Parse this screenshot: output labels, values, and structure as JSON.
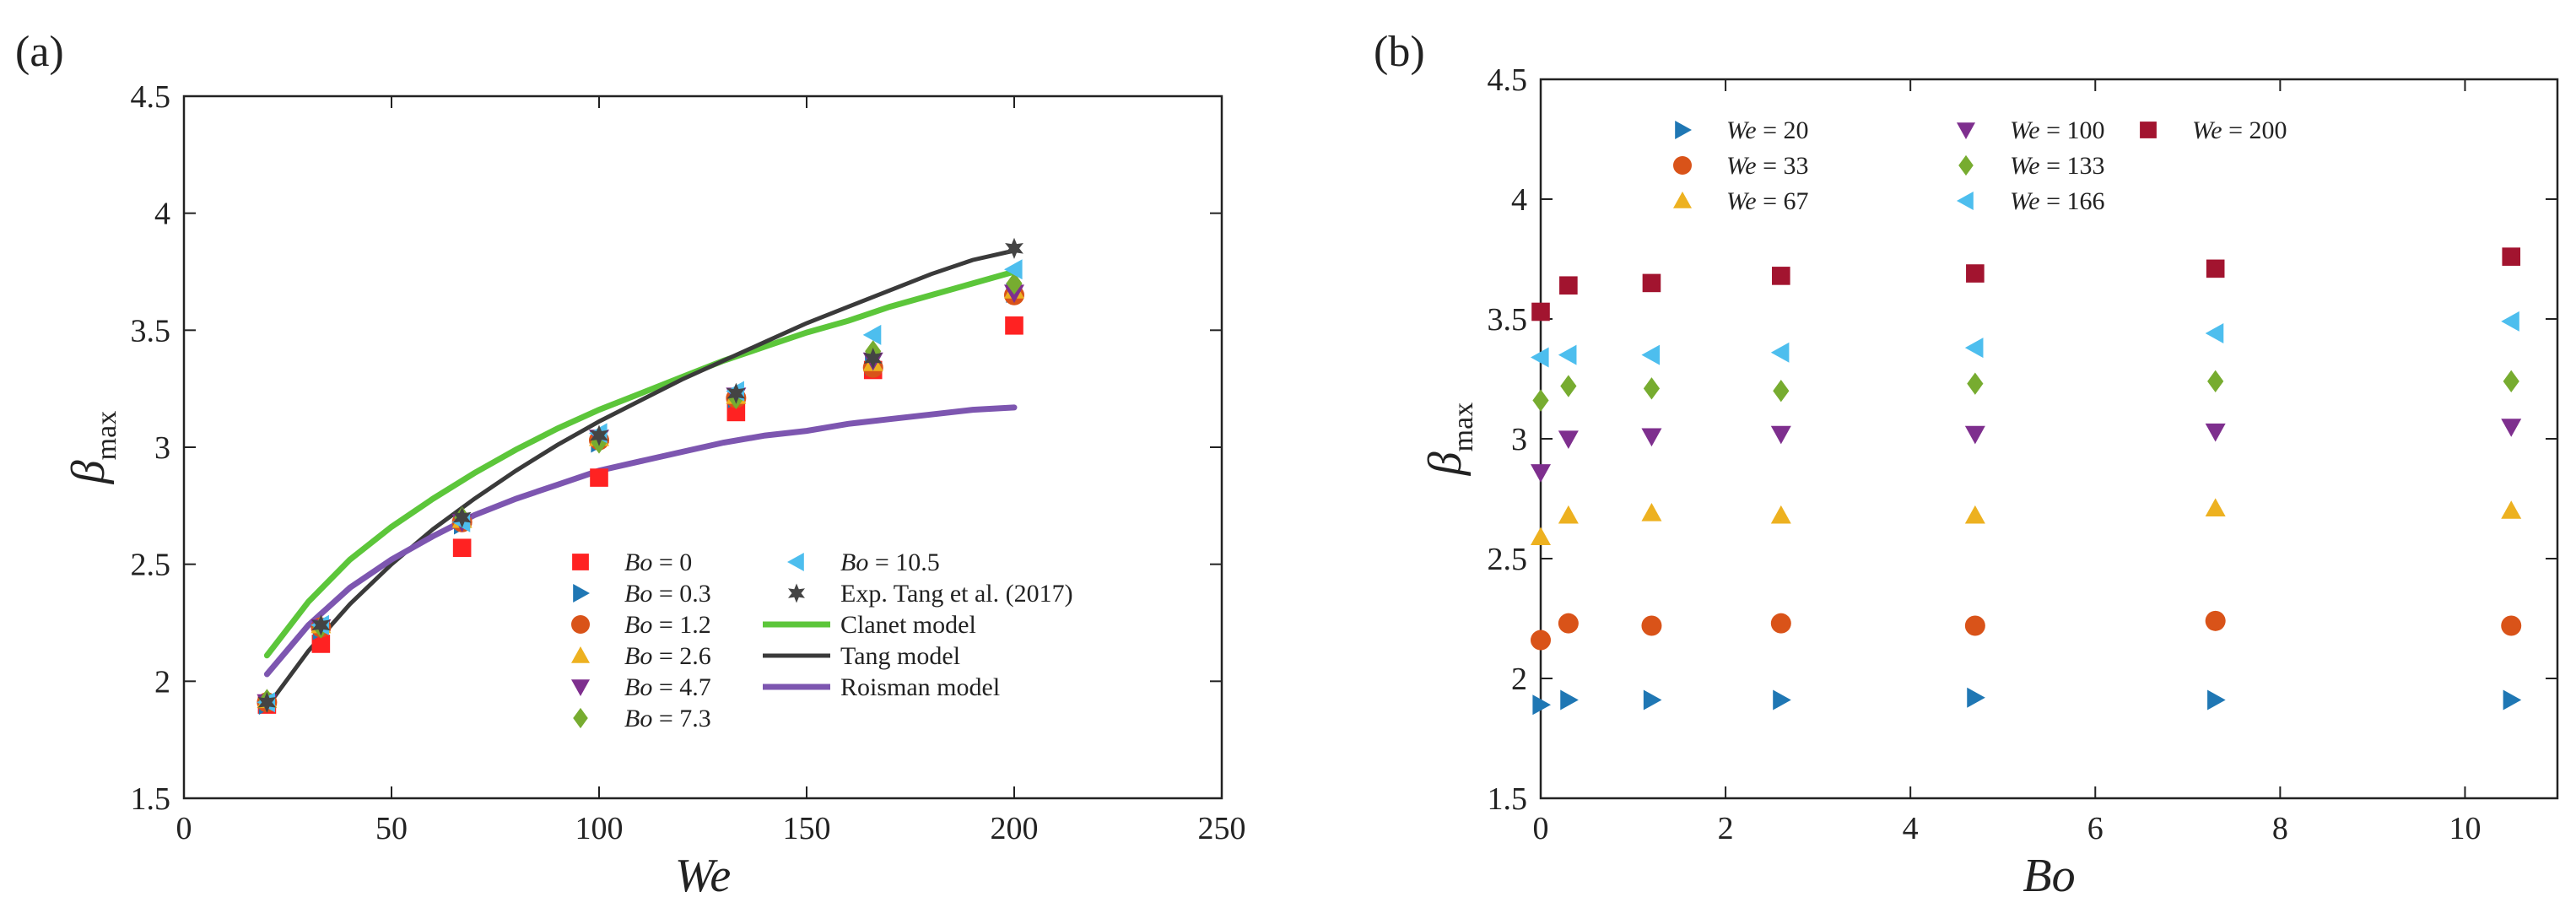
{
  "figure": {
    "background": "#ffffff"
  },
  "colors": {
    "we20": "#1f77b4",
    "we33": "#d95319",
    "we67": "#edb120",
    "we100": "#7e2f8e",
    "we133": "#77ac30",
    "we166": "#4dbeee",
    "we200": "#a2142f",
    "bo0": "#ff2222",
    "bo03": "#1f77b4",
    "bo12": "#d95319",
    "bo26": "#edb120",
    "bo47": "#7e2f8e",
    "bo73": "#77ac30",
    "bo105": "#4dbeee",
    "exp": "#444444",
    "clanet": "#5cc63a",
    "tang": "#3a3a3a",
    "roisman": "#7d56b0"
  },
  "chart_data": [
    {
      "panel": "(a)",
      "type": "scatter",
      "xlabel": "We",
      "ylabel": "β",
      "ylabel_sub": "max",
      "xlim": [
        0,
        250
      ],
      "ylim": [
        1.5,
        4.5
      ],
      "xticks": [
        0,
        50,
        100,
        150,
        200,
        250
      ],
      "yticks": [
        1.5,
        2,
        2.5,
        3,
        3.5,
        4,
        4.5
      ],
      "x": [
        20,
        33,
        67,
        100,
        133,
        166,
        200
      ],
      "series": [
        {
          "name": "Bo = 0",
          "pre": "Bo",
          "val": "0",
          "marker": "square",
          "color_key": "bo0",
          "values": [
            1.9,
            2.16,
            2.57,
            2.87,
            3.15,
            3.33,
            3.52
          ]
        },
        {
          "name": "Bo = 0.3",
          "pre": "Bo",
          "val": "0.3",
          "marker": "tri-right",
          "color_key": "bo03",
          "values": [
            1.9,
            2.22,
            2.67,
            3.02,
            3.21,
            3.35,
            3.66
          ]
        },
        {
          "name": "Bo = 1.2",
          "pre": "Bo",
          "val": "1.2",
          "marker": "circle",
          "color_key": "bo12",
          "values": [
            1.91,
            2.23,
            2.68,
            3.03,
            3.21,
            3.34,
            3.65
          ]
        },
        {
          "name": "Bo = 2.6",
          "pre": "Bo",
          "val": "2.6",
          "marker": "tri-up",
          "color_key": "bo26",
          "values": [
            1.92,
            2.24,
            2.69,
            3.04,
            3.22,
            3.36,
            3.67
          ]
        },
        {
          "name": "Bo = 4.7",
          "pre": "Bo",
          "val": "4.7",
          "marker": "tri-down",
          "color_key": "bo47",
          "values": [
            1.91,
            2.23,
            2.68,
            3.04,
            3.22,
            3.37,
            3.66
          ]
        },
        {
          "name": "Bo = 7.3",
          "pre": "Bo",
          "val": "7.3",
          "marker": "diamond",
          "color_key": "bo73",
          "values": [
            1.92,
            2.23,
            2.7,
            3.02,
            3.21,
            3.41,
            3.7
          ]
        },
        {
          "name": "Bo = 10.5",
          "pre": "Bo",
          "val": "10.5",
          "marker": "tri-left",
          "color_key": "bo105",
          "values": [
            1.91,
            2.24,
            2.68,
            3.06,
            3.24,
            3.48,
            3.76
          ]
        },
        {
          "name": "Exp. Tang et al. (2017)",
          "plain": "Exp. Tang et al. (2017)",
          "marker": "star",
          "color_key": "exp",
          "values": [
            1.91,
            2.24,
            2.7,
            3.05,
            3.23,
            3.38,
            3.85
          ]
        }
      ],
      "lines": [
        {
          "name": "Clanet model",
          "color_key": "clanet",
          "width": 7,
          "x": [
            20,
            30,
            40,
            50,
            60,
            70,
            80,
            90,
            100,
            110,
            120,
            130,
            140,
            150,
            160,
            170,
            180,
            190,
            200
          ],
          "y": [
            2.11,
            2.34,
            2.52,
            2.66,
            2.78,
            2.89,
            2.99,
            3.08,
            3.16,
            3.23,
            3.3,
            3.37,
            3.43,
            3.49,
            3.54,
            3.6,
            3.65,
            3.7,
            3.75
          ]
        },
        {
          "name": "Tang model",
          "color_key": "tang",
          "width": 5,
          "x": [
            20,
            30,
            40,
            50,
            60,
            70,
            80,
            90,
            100,
            110,
            120,
            130,
            140,
            150,
            160,
            170,
            180,
            190,
            200
          ],
          "y": [
            1.89,
            2.13,
            2.33,
            2.5,
            2.65,
            2.78,
            2.9,
            3.01,
            3.11,
            3.2,
            3.29,
            3.37,
            3.45,
            3.53,
            3.6,
            3.67,
            3.74,
            3.8,
            3.84
          ]
        },
        {
          "name": "Roisman model",
          "color_key": "roisman",
          "width": 7,
          "x": [
            20,
            30,
            40,
            50,
            60,
            70,
            80,
            90,
            100,
            110,
            120,
            130,
            140,
            150,
            160,
            170,
            180,
            190,
            200
          ],
          "y": [
            2.03,
            2.24,
            2.4,
            2.52,
            2.62,
            2.71,
            2.78,
            2.84,
            2.9,
            2.94,
            2.98,
            3.02,
            3.05,
            3.07,
            3.1,
            3.12,
            3.14,
            3.16,
            3.17
          ]
        }
      ]
    },
    {
      "panel": "(b)",
      "type": "scatter",
      "xlabel": "Bo",
      "ylabel": "β",
      "ylabel_sub": "max",
      "xlim": [
        0,
        11
      ],
      "ylim": [
        1.5,
        4.5
      ],
      "xticks": [
        0,
        2,
        4,
        6,
        8,
        10
      ],
      "yticks": [
        1.5,
        2,
        2.5,
        3,
        3.5,
        4,
        4.5
      ],
      "x": [
        0,
        0.3,
        1.2,
        2.6,
        4.7,
        7.3,
        10.5
      ],
      "series": [
        {
          "name": "We = 20",
          "pre": "We",
          "val": "20",
          "marker": "tri-right",
          "color_key": "we20",
          "values": [
            1.89,
            1.91,
            1.91,
            1.91,
            1.92,
            1.91,
            1.91
          ]
        },
        {
          "name": "We = 33",
          "pre": "We",
          "val": "33",
          "marker": "circle",
          "color_key": "we33",
          "values": [
            2.16,
            2.23,
            2.22,
            2.23,
            2.22,
            2.24,
            2.22
          ]
        },
        {
          "name": "We = 67",
          "pre": "We",
          "val": "67",
          "marker": "tri-up",
          "color_key": "we67",
          "values": [
            2.59,
            2.68,
            2.69,
            2.68,
            2.68,
            2.71,
            2.7
          ]
        },
        {
          "name": "We = 100",
          "pre": "We",
          "val": "100",
          "marker": "tri-down",
          "color_key": "we100",
          "values": [
            2.86,
            3.0,
            3.01,
            3.02,
            3.02,
            3.03,
            3.05
          ]
        },
        {
          "name": "We = 133",
          "pre": "We",
          "val": "133",
          "marker": "diamond",
          "color_key": "we133",
          "values": [
            3.16,
            3.22,
            3.21,
            3.2,
            3.23,
            3.24,
            3.24
          ]
        },
        {
          "name": "We = 166",
          "pre": "We",
          "val": "166",
          "marker": "tri-left",
          "color_key": "we166",
          "values": [
            3.34,
            3.35,
            3.35,
            3.36,
            3.38,
            3.44,
            3.49
          ]
        },
        {
          "name": "We = 200",
          "pre": "We",
          "val": "200",
          "marker": "square",
          "color_key": "we200",
          "values": [
            3.53,
            3.64,
            3.65,
            3.68,
            3.69,
            3.71,
            3.76
          ]
        }
      ]
    }
  ]
}
